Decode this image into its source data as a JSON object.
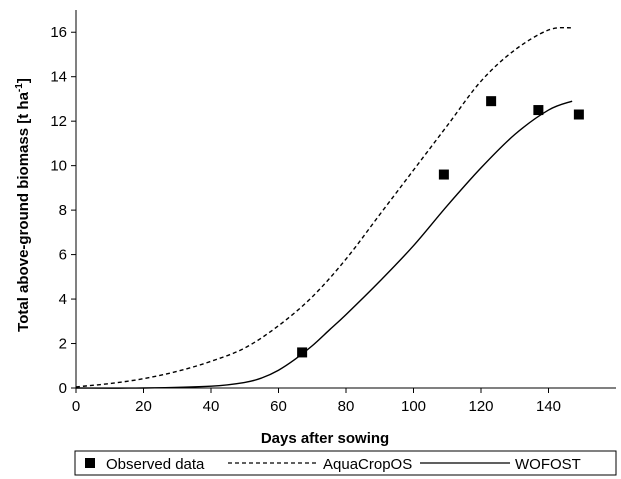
{
  "chart_data": {
    "type": "line",
    "title": "",
    "xlabel": "Days after sowing",
    "ylabel": "Total above-ground biomass [t ha",
    "ylabel_sup": "-1",
    "ylabel_end": "]",
    "xlim": [
      0,
      160
    ],
    "ylim": [
      0,
      17
    ],
    "xticks": [
      0,
      20,
      40,
      60,
      80,
      100,
      120,
      140
    ],
    "yticks": [
      0,
      2,
      4,
      6,
      8,
      10,
      12,
      14,
      16
    ],
    "grid": false,
    "legend_position": "bottom",
    "series": [
      {
        "name": "Observed data",
        "kind": "scatter",
        "marker": "square",
        "color": "#000000",
        "x": [
          67,
          109,
          123,
          137,
          149
        ],
        "y": [
          1.6,
          9.6,
          12.9,
          12.5,
          12.3
        ]
      },
      {
        "name": "AquaCropOS",
        "kind": "line",
        "style": "dashed",
        "color": "#000000",
        "x": [
          0,
          10,
          20,
          30,
          40,
          50,
          60,
          70,
          80,
          90,
          100,
          110,
          120,
          130,
          140,
          147
        ],
        "y": [
          0.05,
          0.2,
          0.42,
          0.75,
          1.2,
          1.8,
          2.8,
          4.1,
          5.8,
          7.8,
          9.8,
          11.8,
          13.8,
          15.2,
          16.1,
          16.2
        ]
      },
      {
        "name": "WOFOST",
        "kind": "line",
        "style": "solid",
        "color": "#000000",
        "x": [
          0,
          20,
          40,
          50,
          55,
          60,
          65,
          70,
          75,
          80,
          90,
          100,
          110,
          120,
          130,
          140,
          147
        ],
        "y": [
          0.0,
          0.0,
          0.08,
          0.25,
          0.45,
          0.8,
          1.3,
          1.9,
          2.6,
          3.3,
          4.8,
          6.4,
          8.2,
          9.9,
          11.4,
          12.5,
          12.9
        ]
      }
    ]
  }
}
